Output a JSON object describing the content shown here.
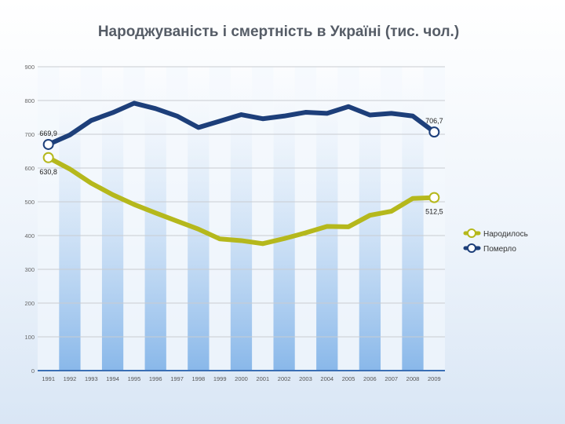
{
  "chart_data": {
    "type": "line",
    "title": "Народжуваність і смертність в Україні (тис. чол.)",
    "categories": [
      "1991",
      "1992",
      "1993",
      "1994",
      "1995",
      "1996",
      "1997",
      "1998",
      "1999",
      "2000",
      "2001",
      "2002",
      "2003",
      "2004",
      "2005",
      "2006",
      "2007",
      "2008",
      "2009"
    ],
    "ylim": [
      0,
      900
    ],
    "yticks": [
      0,
      100,
      200,
      300,
      400,
      500,
      600,
      700,
      800,
      900
    ],
    "grid": true,
    "legend_position": "right",
    "series": [
      {
        "name": "Народилось",
        "color": "#b5b81c",
        "values": [
          630.8,
          597,
          555,
          521,
          492,
          467,
          443,
          419,
          390,
          385,
          376,
          391,
          408,
          427,
          426,
          460,
          472,
          510,
          512.5
        ]
      },
      {
        "name": "Померло",
        "color": "#1d3f7a",
        "values": [
          669.9,
          698,
          741,
          764,
          792,
          776,
          754,
          720,
          739,
          758,
          746,
          754,
          765,
          762,
          782,
          757,
          762,
          754,
          706.7
        ]
      }
    ],
    "annotations": [
      {
        "series": 1,
        "index": 0,
        "text": "669,9",
        "side": "above"
      },
      {
        "series": 0,
        "index": 0,
        "text": "630,8",
        "side": "below"
      },
      {
        "series": 1,
        "index": 18,
        "text": "706,7",
        "side": "above"
      },
      {
        "series": 0,
        "index": 18,
        "text": "512,5",
        "side": "below"
      }
    ]
  }
}
